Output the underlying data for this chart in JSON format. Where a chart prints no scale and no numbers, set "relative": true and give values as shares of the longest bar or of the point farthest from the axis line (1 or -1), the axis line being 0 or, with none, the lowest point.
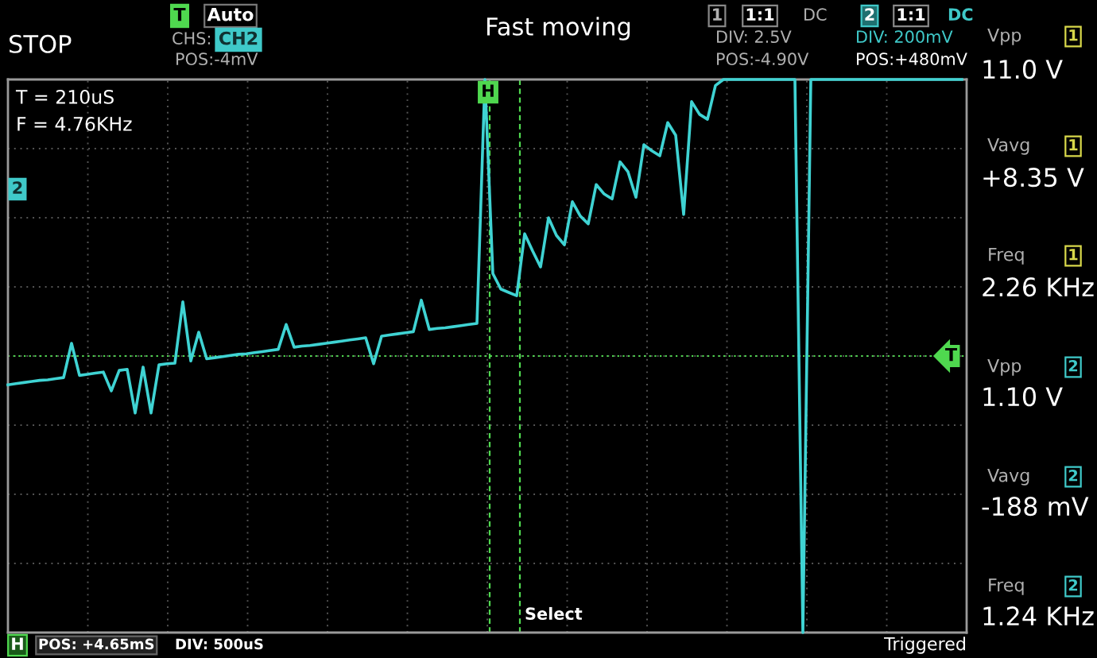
{
  "chart_data": {
    "type": "line",
    "relative": true,
    "grid": true,
    "marker": "none",
    "line_style": "solid",
    "categories": [
      null,
      null,
      null,
      null,
      null,
      null,
      null,
      null,
      null,
      null,
      null,
      null,
      null,
      null,
      null,
      null,
      null,
      null,
      null,
      null,
      null,
      null,
      null,
      null,
      null,
      null,
      null,
      null,
      null,
      null,
      null,
      null,
      null,
      null,
      null,
      null,
      null,
      null,
      null,
      null,
      null,
      null,
      null,
      null,
      null,
      null,
      null,
      null,
      null,
      null,
      null,
      null,
      null,
      null,
      null,
      null,
      null,
      null,
      null,
      null,
      null,
      null,
      null,
      null,
      null,
      null,
      null,
      null,
      null,
      null,
      null,
      null,
      null,
      null,
      null,
      null,
      null,
      null,
      null,
      null,
      null,
      null,
      null,
      null,
      null,
      null,
      null,
      null,
      null,
      null,
      null,
      null,
      null,
      null,
      null,
      null,
      null,
      null,
      null,
      null,
      null,
      null,
      null,
      null,
      null,
      null,
      null,
      null,
      null,
      null,
      null,
      null,
      null,
      null,
      null,
      null,
      null,
      null,
      null,
      null,
      null
    ],
    "series": [
      {
        "color": "#3fd3d3",
        "values": [
          0.448,
          0.45,
          0.452,
          0.454,
          0.456,
          0.457,
          0.459,
          0.461,
          0.523,
          0.465,
          0.467,
          0.469,
          0.471,
          0.437,
          0.474,
          0.476,
          0.397,
          0.48,
          0.397,
          0.484,
          0.486,
          0.487,
          0.598,
          0.491,
          0.543,
          0.495,
          0.497,
          0.499,
          0.501,
          0.503,
          0.504,
          0.506,
          0.508,
          0.51,
          0.512,
          0.557,
          0.516,
          0.518,
          0.519,
          0.521,
          0.523,
          0.525,
          0.527,
          0.529,
          0.531,
          0.533,
          0.486,
          0.536,
          0.538,
          0.54,
          0.542,
          0.544,
          0.601,
          0.548,
          0.55,
          0.551,
          0.553,
          0.555,
          0.557,
          0.559,
          1.0,
          0.649,
          0.621,
          0.615,
          0.609,
          0.721,
          0.69,
          0.661,
          0.75,
          0.718,
          0.701,
          0.779,
          0.753,
          0.739,
          0.81,
          0.793,
          0.784,
          0.851,
          0.833,
          0.787,
          0.882,
          0.871,
          0.862,
          0.922,
          0.899,
          0.756,
          0.96,
          0.937,
          0.928,
          0.989,
          1.0,
          1.0,
          1.0,
          1.0,
          1.0,
          1.0,
          1.0,
          1.0,
          1.0,
          1.0,
          0.0,
          1.0,
          1.0,
          1.0,
          1.0,
          1.0,
          1.0,
          1.0,
          1.0,
          1.0,
          1.0,
          1.0,
          1.0,
          1.0,
          1.0,
          1.0,
          1.0,
          1.0,
          1.0,
          1.0,
          1.0
        ]
      }
    ],
    "ref_lines": [
      {
        "axis": "y",
        "value": 0.5,
        "label": "T",
        "color": "#4fd84f",
        "line_style": "dotted"
      }
    ],
    "annotations": [
      "STOP",
      "T",
      "Auto",
      "CHS:",
      "CH2",
      "POS:-4mV",
      "Fast moving",
      "1",
      "1:1",
      "DC",
      "DIV: 2.5V",
      "POS:-4.90V",
      "2",
      "1:1",
      "DC",
      "DIV: 200mV",
      "POS:+480mV",
      "Vpp",
      "1",
      "11.0 V",
      "Vavg",
      "1",
      "+8.35 V",
      "Freq",
      "1",
      "2.26 KHz",
      "Vpp",
      "2",
      "1.10 V",
      "Vavg",
      "2",
      "-188 mV",
      "Freq",
      "2",
      "1.24 KHz",
      "H",
      "POS: +4.65mS",
      "DIV: 500uS",
      "Triggered",
      "Select",
      "T = 210uS",
      "F = 4.76KHz",
      "2",
      "H"
    ]
  }
}
